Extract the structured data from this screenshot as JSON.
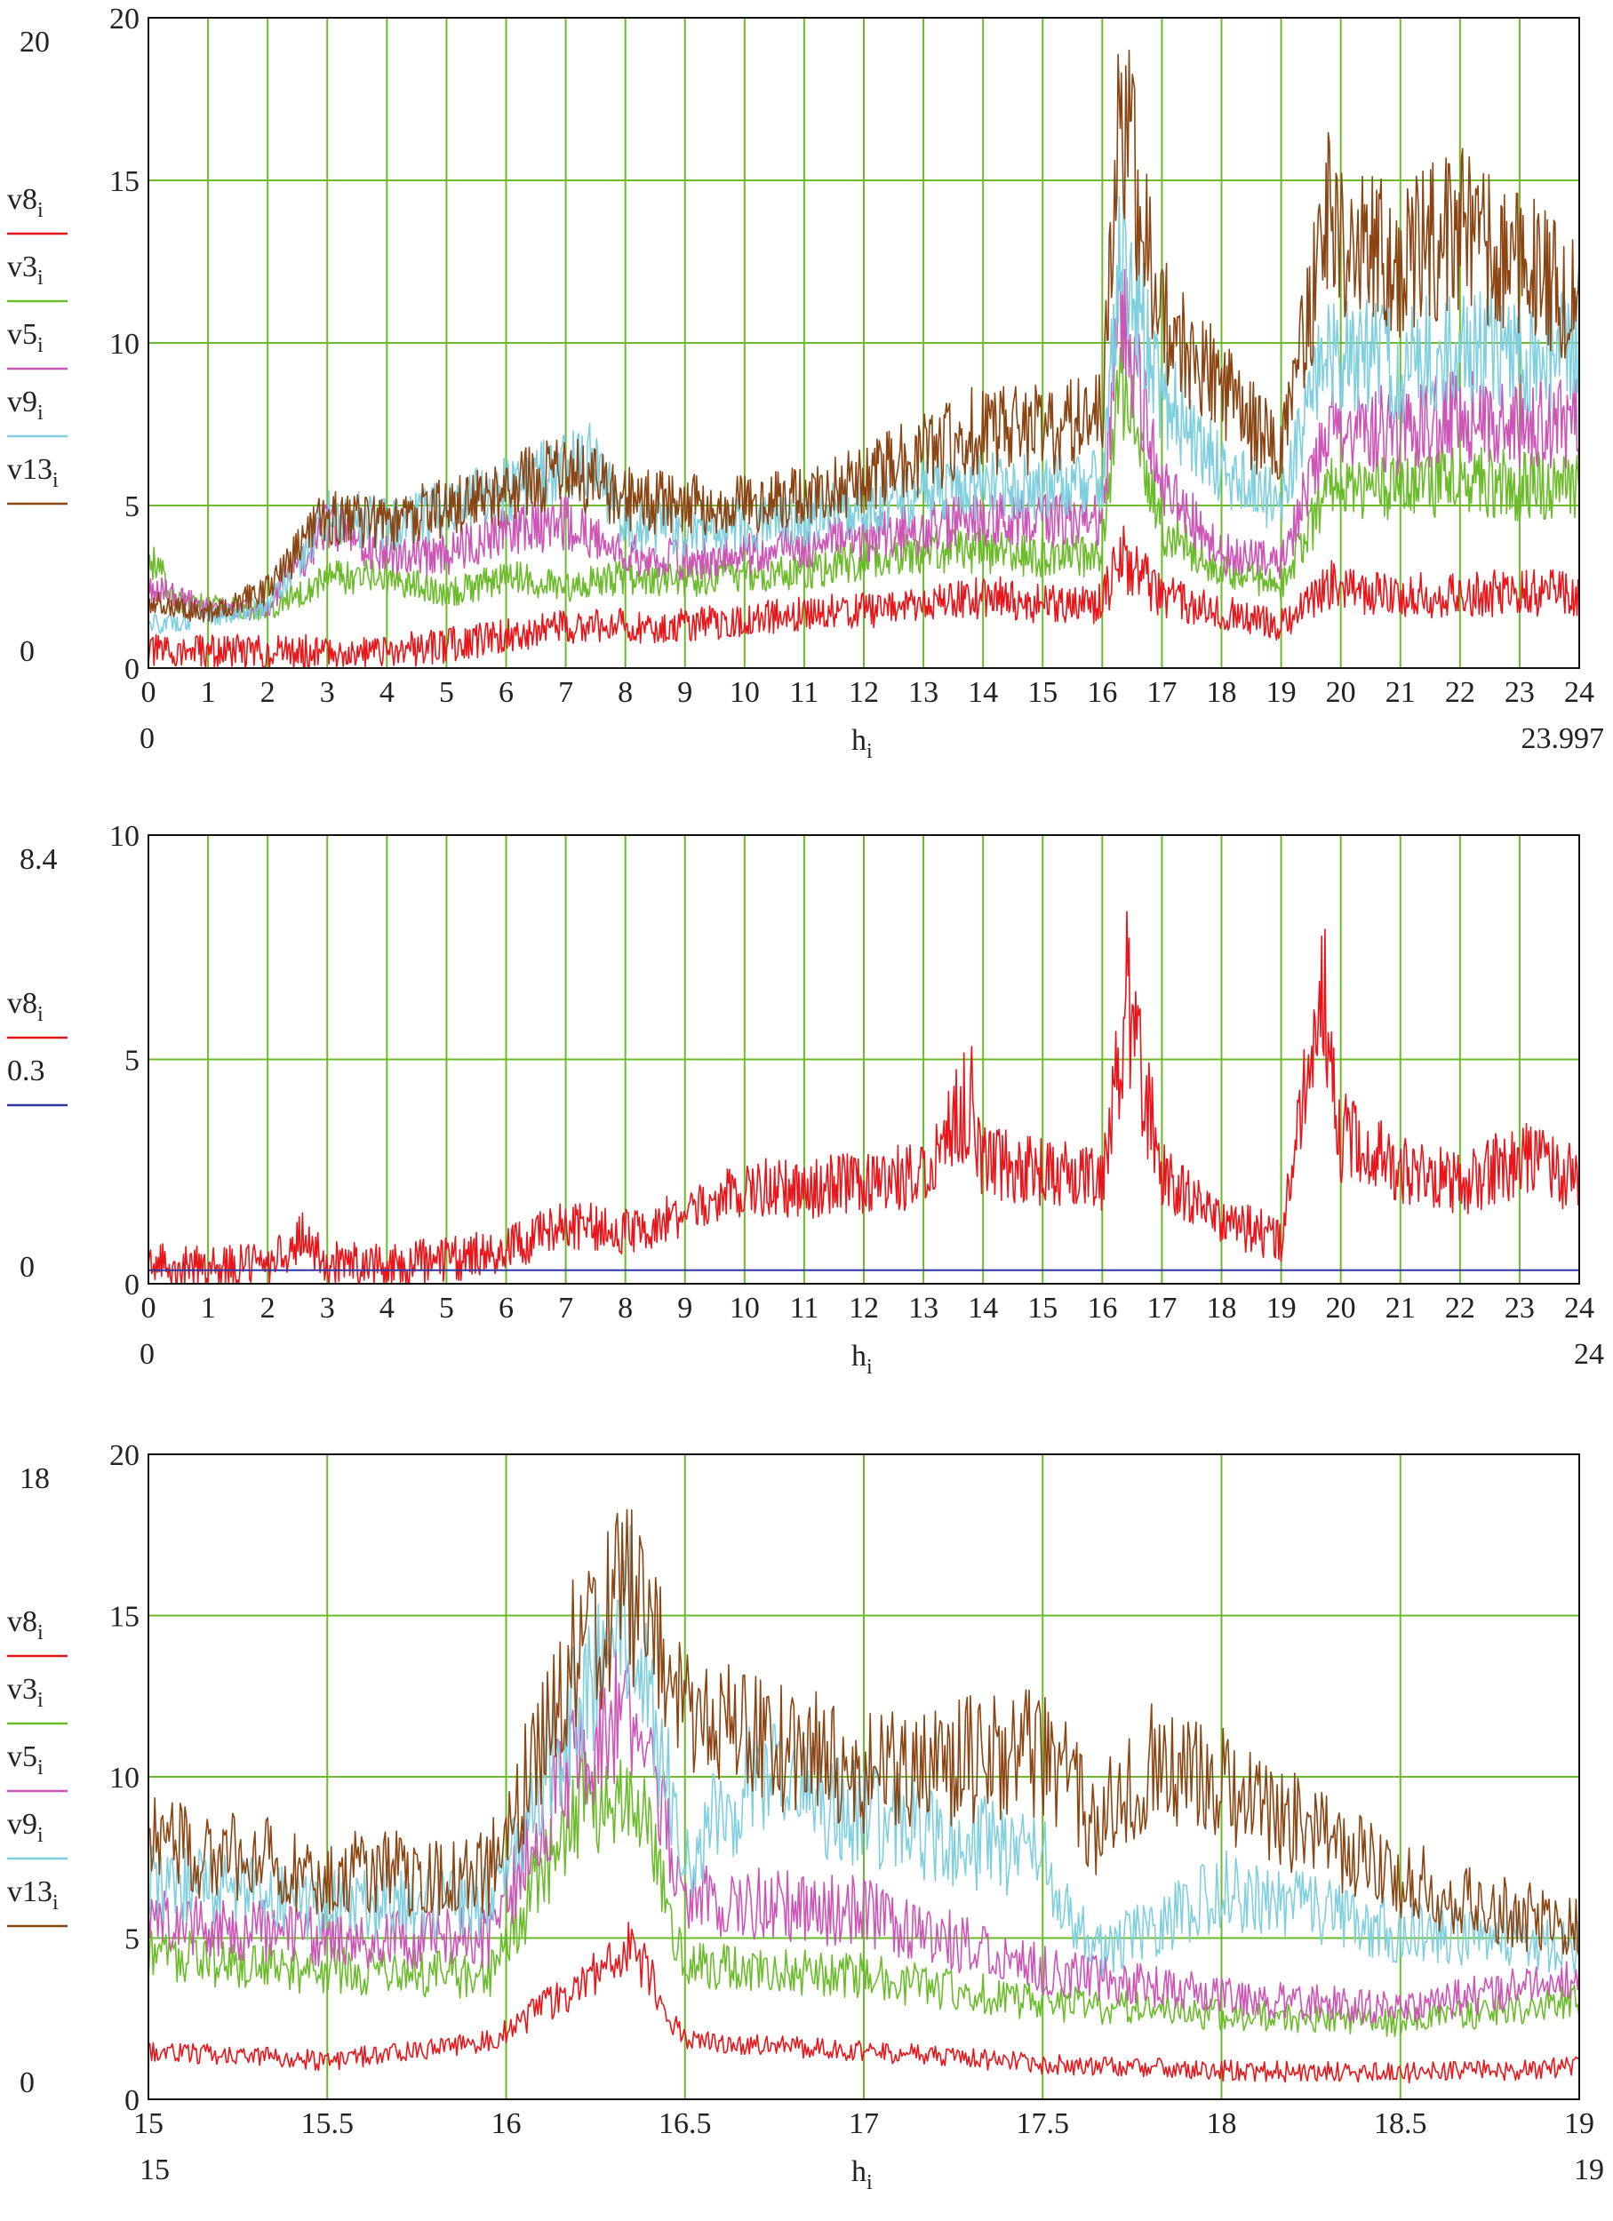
{
  "chart_data": [
    {
      "type": "line",
      "xlabel": "h",
      "xlabel_sub": "i",
      "xlim": [
        0,
        24
      ],
      "ylim": [
        0,
        20
      ],
      "x_ticks": [
        "0",
        "1",
        "2",
        "3",
        "4",
        "5",
        "6",
        "7",
        "8",
        "9",
        "10",
        "11",
        "12",
        "13",
        "14",
        "15",
        "16",
        "17",
        "18",
        "19",
        "20",
        "21",
        "22",
        "23",
        "24"
      ],
      "y_ticks": [
        "0",
        "5",
        "10",
        "15",
        "20"
      ],
      "range_x_min": "0",
      "range_x_max": "23.997",
      "range_y_min": "0",
      "range_y_max": "20",
      "grid": true,
      "legend_position": "left",
      "series": [
        {
          "name": "v8",
          "sub": "i",
          "color": "#e8161b",
          "x": [
            0,
            1,
            2,
            3,
            4,
            5,
            6,
            7,
            8,
            9,
            10,
            11,
            12,
            13,
            14,
            15,
            16,
            16.3,
            17,
            18,
            19,
            19.8,
            20,
            21,
            22,
            23,
            24
          ],
          "values": [
            0.5,
            0.5,
            0.5,
            0.5,
            0.5,
            0.7,
            1,
            1.3,
            1.3,
            1.3,
            1.5,
            1.7,
            1.8,
            1.9,
            2.2,
            2,
            2,
            3.5,
            2.2,
            1.7,
            1.3,
            2.6,
            2.4,
            2.2,
            2.3,
            2.3,
            2.3
          ]
        },
        {
          "name": "v3",
          "sub": "i",
          "color": "#6bbb2a",
          "x": [
            0,
            0.5,
            1,
            2,
            3,
            4,
            5,
            6,
            7,
            8,
            9,
            10,
            11,
            12,
            13,
            14,
            15,
            16,
            16.3,
            17,
            18,
            19,
            19.8,
            20,
            21,
            22,
            23,
            24
          ],
          "values": [
            3.5,
            2,
            1.9,
            1.8,
            2.8,
            2.8,
            2.3,
            2.8,
            2.5,
            2.8,
            2.7,
            2.8,
            3,
            3.3,
            3.6,
            3.6,
            3.4,
            3.5,
            9,
            4.3,
            3,
            2.5,
            5.5,
            5.5,
            5.6,
            5.8,
            5.6,
            5.5
          ]
        },
        {
          "name": "v5",
          "sub": "i",
          "color": "#cc55b6",
          "x": [
            0,
            1,
            2,
            3,
            4,
            5,
            6,
            7,
            8,
            9,
            10,
            11,
            12,
            13,
            14,
            15,
            16,
            16.3,
            17,
            18,
            19,
            19.8,
            20,
            21,
            22,
            23,
            24
          ],
          "values": [
            2.5,
            1.8,
            1.8,
            4.5,
            3.5,
            3.5,
            4.2,
            4.5,
            3.5,
            3.3,
            3.5,
            3.8,
            4,
            4.3,
            4.6,
            4.5,
            4.6,
            11,
            5.8,
            3.5,
            3.2,
            7.5,
            7.5,
            7.2,
            7.8,
            7.6,
            7.5
          ]
        },
        {
          "name": "v9",
          "sub": "i",
          "color": "#7fcfdf",
          "x": [
            0,
            1,
            2,
            3,
            4,
            5,
            6,
            7,
            7.4,
            8,
            9,
            10,
            11,
            12,
            13,
            14,
            15,
            16,
            16.3,
            17,
            18,
            19,
            19.8,
            20,
            21,
            22,
            23,
            24
          ],
          "values": [
            1.3,
            1.6,
            1.9,
            4.7,
            4.4,
            4.9,
            5.5,
            6.2,
            6.5,
            4.5,
            4.2,
            4.4,
            4.6,
            5,
            5.4,
            5.6,
            5.6,
            5.7,
            13,
            8.5,
            6,
            5,
            10,
            9.8,
            9.3,
            10,
            9.7,
            9.8
          ]
        },
        {
          "name": "v13",
          "sub": "i",
          "color": "#8b4513",
          "x": [
            0,
            1,
            2,
            3,
            4,
            5,
            6,
            7,
            8,
            9,
            10,
            11,
            12,
            13,
            14,
            15,
            16,
            16.3,
            17,
            18,
            19,
            19.8,
            20,
            21,
            22,
            23,
            24
          ],
          "values": [
            2,
            1.7,
            2.4,
            4.7,
            4.4,
            5,
            5.5,
            6.1,
            5.2,
            5,
            5.1,
            5.3,
            5.8,
            6.6,
            7.4,
            7.3,
            7.6,
            17.5,
            10.6,
            8.6,
            6.5,
            14,
            13,
            12.5,
            13.5,
            12.5,
            11
          ]
        }
      ]
    },
    {
      "type": "line",
      "xlabel": "h",
      "xlabel_sub": "i",
      "xlim": [
        0,
        24
      ],
      "ylim": [
        0,
        10
      ],
      "x_ticks": [
        "0",
        "1",
        "2",
        "3",
        "4",
        "5",
        "6",
        "7",
        "8",
        "9",
        "10",
        "11",
        "12",
        "13",
        "14",
        "15",
        "16",
        "17",
        "18",
        "19",
        "20",
        "21",
        "22",
        "23",
        "24"
      ],
      "y_ticks": [
        "0",
        "5",
        "10"
      ],
      "range_x_min": "0",
      "range_x_max": "24",
      "range_y_min": "0",
      "range_y_max": "8.4",
      "grid": true,
      "legend_position": "left",
      "series": [
        {
          "name": "v8",
          "sub": "i",
          "color": "#e8161b",
          "x": [
            0,
            1,
            2,
            2.6,
            3,
            4,
            5,
            6,
            7,
            8,
            9,
            10,
            11,
            12,
            13,
            13.8,
            14,
            15,
            16,
            16.4,
            17,
            18,
            19,
            19.7,
            20,
            21,
            22,
            23,
            24
          ],
          "values": [
            0.4,
            0.3,
            0.4,
            1.1,
            0.4,
            0.4,
            0.5,
            0.8,
            1.3,
            1.2,
            1.5,
            2.2,
            2.1,
            2.3,
            2.4,
            4.2,
            2.7,
            2.5,
            2.3,
            6.5,
            2.4,
            1.4,
            1,
            6.8,
            3.3,
            2.6,
            2.2,
            2.8,
            2.3
          ]
        },
        {
          "name": "0.3",
          "color": "#2b35a4",
          "x": [
            0,
            24
          ],
          "values": [
            0.3,
            0.3
          ]
        }
      ]
    },
    {
      "type": "line",
      "xlabel": "h",
      "xlabel_sub": "i",
      "xlim": [
        15,
        19
      ],
      "ylim": [
        0,
        20
      ],
      "x_ticks": [
        "15",
        "15.5",
        "16",
        "16.5",
        "17",
        "17.5",
        "18",
        "18.5",
        "19"
      ],
      "y_ticks": [
        "0",
        "5",
        "10",
        "15",
        "20"
      ],
      "range_x_min": "15",
      "range_x_max": "19",
      "range_y_min": "0",
      "range_y_max": "18",
      "grid": true,
      "legend_position": "left",
      "series": [
        {
          "name": "v8",
          "sub": "i",
          "color": "#e8161b",
          "x": [
            15,
            15.5,
            15.95,
            16.2,
            16.35,
            16.5,
            17,
            17.5,
            18,
            18.5,
            19
          ],
          "values": [
            1.5,
            1.2,
            1.8,
            3.5,
            4.8,
            1.8,
            1.5,
            1.1,
            0.9,
            0.8,
            1
          ]
        },
        {
          "name": "v3",
          "sub": "i",
          "color": "#6bbb2a",
          "x": [
            15,
            15.5,
            15.95,
            16.2,
            16.35,
            16.5,
            17,
            17.5,
            18,
            18.5,
            19
          ],
          "values": [
            4.5,
            4,
            3.8,
            9,
            10,
            4.2,
            3.8,
            3,
            2.6,
            2.4,
            3
          ]
        },
        {
          "name": "v5",
          "sub": "i",
          "color": "#cc55b6",
          "x": [
            15,
            15.5,
            15.95,
            16.2,
            16.35,
            16.5,
            17,
            17.5,
            18,
            18.5,
            19
          ],
          "values": [
            5.5,
            5,
            5,
            11,
            12,
            6.3,
            5.8,
            4,
            3.2,
            2.8,
            3.8
          ]
        },
        {
          "name": "v9",
          "sub": "i",
          "color": "#7fcfdf",
          "x": [
            15,
            15.5,
            15.95,
            16.2,
            16.35,
            16.5,
            16.7,
            17,
            17.5,
            17.65,
            18,
            18.5,
            19
          ],
          "values": [
            6.7,
            6,
            6.2,
            12.5,
            15,
            7.5,
            10,
            8.8,
            7.5,
            4.5,
            6.5,
            5.2,
            4.8
          ]
        },
        {
          "name": "v13",
          "sub": "i",
          "color": "#8b4513",
          "x": [
            15,
            15.5,
            15.95,
            16.2,
            16.35,
            16.5,
            17,
            17.5,
            17.65,
            17.8,
            18,
            18.5,
            19
          ],
          "values": [
            8,
            7,
            7,
            14,
            16,
            11.8,
            10.2,
            10.8,
            8.5,
            10.3,
            9.8,
            6.8,
            5.2
          ]
        }
      ]
    }
  ]
}
